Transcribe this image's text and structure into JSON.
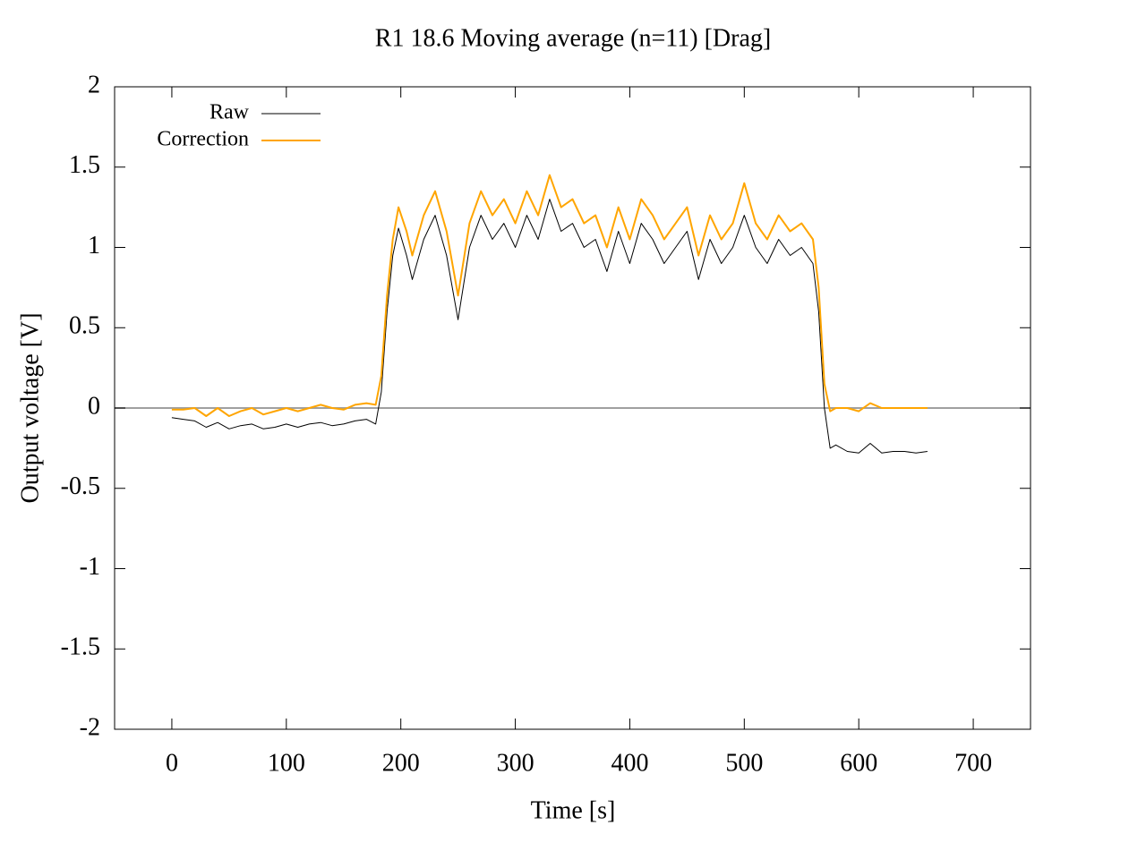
{
  "chart_data": {
    "type": "line",
    "title": "R1 18.6  Moving average (n=11) [Drag]",
    "x_label": "Time [s]",
    "y_label": "Output voltage [V]",
    "xlim": [
      -50,
      750
    ],
    "xticks": [
      0,
      100,
      200,
      300,
      400,
      500,
      600,
      700
    ],
    "ylim": [
      -2,
      2
    ],
    "yticks": [
      -2,
      -1.5,
      -1,
      -0.5,
      0,
      0.5,
      1,
      1.5,
      2
    ],
    "zeroaxis": true,
    "legend": "top-left",
    "x": [
      0,
      10,
      20,
      30,
      40,
      50,
      60,
      70,
      80,
      90,
      100,
      110,
      120,
      130,
      140,
      150,
      160,
      170,
      178,
      183,
      188,
      193,
      198,
      205,
      210,
      220,
      230,
      240,
      250,
      260,
      270,
      280,
      290,
      300,
      310,
      320,
      330,
      340,
      350,
      360,
      370,
      380,
      390,
      400,
      410,
      420,
      430,
      440,
      450,
      460,
      470,
      480,
      490,
      500,
      510,
      520,
      530,
      540,
      550,
      560,
      565,
      570,
      575,
      580,
      590,
      600,
      610,
      620,
      630,
      640,
      650,
      660
    ],
    "series": [
      {
        "name": "Raw",
        "color": "#000000",
        "values": [
          -0.06,
          -0.07,
          -0.08,
          -0.12,
          -0.09,
          -0.13,
          -0.11,
          -0.1,
          -0.13,
          -0.12,
          -0.1,
          -0.12,
          -0.1,
          -0.09,
          -0.11,
          -0.1,
          -0.08,
          -0.07,
          -0.1,
          0.1,
          0.6,
          0.95,
          1.12,
          0.95,
          0.8,
          1.05,
          1.2,
          0.95,
          0.55,
          1.0,
          1.2,
          1.05,
          1.15,
          1.0,
          1.2,
          1.05,
          1.3,
          1.1,
          1.15,
          1.0,
          1.05,
          0.85,
          1.1,
          0.9,
          1.15,
          1.05,
          0.9,
          1.0,
          1.1,
          0.8,
          1.05,
          0.9,
          1.0,
          1.2,
          1.0,
          0.9,
          1.05,
          0.95,
          1.0,
          0.9,
          0.6,
          0.0,
          -0.25,
          -0.23,
          -0.27,
          -0.28,
          -0.22,
          -0.28,
          -0.27,
          -0.27,
          -0.28,
          -0.27
        ]
      },
      {
        "name": "Correction",
        "color": "#ffa500",
        "values": [
          -0.01,
          -0.01,
          0.0,
          -0.05,
          0.0,
          -0.05,
          -0.02,
          0.0,
          -0.04,
          -0.02,
          0.0,
          -0.02,
          0.0,
          0.02,
          0.0,
          -0.01,
          0.02,
          0.03,
          0.02,
          0.2,
          0.7,
          1.05,
          1.25,
          1.1,
          0.95,
          1.2,
          1.35,
          1.1,
          0.7,
          1.15,
          1.35,
          1.2,
          1.3,
          1.15,
          1.35,
          1.2,
          1.45,
          1.25,
          1.3,
          1.15,
          1.2,
          1.0,
          1.25,
          1.05,
          1.3,
          1.2,
          1.05,
          1.15,
          1.25,
          0.95,
          1.2,
          1.05,
          1.15,
          1.4,
          1.15,
          1.05,
          1.2,
          1.1,
          1.15,
          1.05,
          0.75,
          0.15,
          -0.02,
          0.0,
          0.0,
          -0.02,
          0.03,
          0.0,
          0.0,
          0.0,
          0.0,
          0.0
        ]
      }
    ]
  }
}
